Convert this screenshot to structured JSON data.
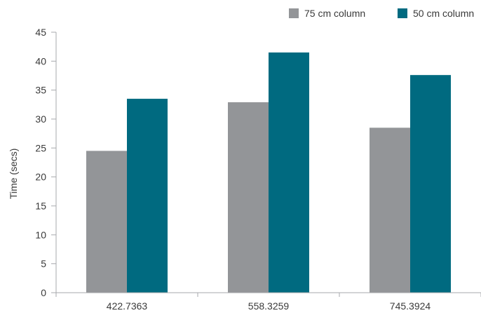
{
  "chart_data": {
    "type": "bar",
    "categories": [
      "422.7363",
      "558.3259",
      "745.3924"
    ],
    "series": [
      {
        "name": "75 cm column",
        "values": [
          24.5,
          32.9,
          28.5
        ],
        "color": "#939598"
      },
      {
        "name": "50 cm column",
        "values": [
          33.5,
          41.5,
          37.6
        ],
        "color": "#006a80"
      }
    ],
    "ylabel": "Time (secs)",
    "xlabel": "",
    "ylim": [
      0,
      45
    ],
    "yticks": [
      0,
      5,
      10,
      15,
      20,
      25,
      30,
      35,
      40,
      45
    ],
    "legend_position": "top-right",
    "grid": false,
    "axis_color": "#a7a9ac",
    "text_color": "#3a3a3a"
  }
}
